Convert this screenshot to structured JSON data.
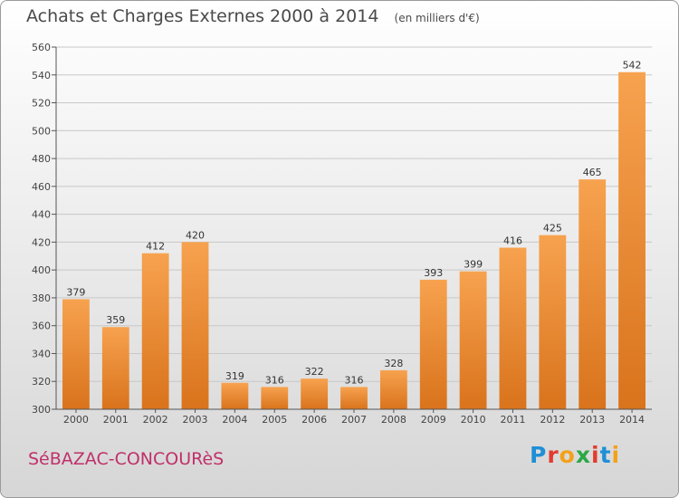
{
  "header": {
    "title": "Achats et Charges Externes 2000 à 2014",
    "unit": "(en milliers d'€)"
  },
  "footer": {
    "commune": "SéBAZAC-CONCOURèS",
    "logo": {
      "letters": [
        "P",
        "r",
        "o",
        "x",
        "i",
        "t",
        "i"
      ],
      "colors": [
        "#1f8fd6",
        "#e23b2f",
        "#f4a11a",
        "#2aa845",
        "#e23b2f",
        "#1f8fd6",
        "#f4a11a"
      ]
    }
  },
  "colors": {
    "bar_light": "#f7a24f",
    "bar_dark": "#d9731c",
    "grid": "#c8c8c8",
    "axis": "#555555"
  },
  "chart_data": {
    "type": "bar",
    "categories": [
      "2000",
      "2001",
      "2002",
      "2003",
      "2004",
      "2005",
      "2006",
      "2007",
      "2008",
      "2009",
      "2010",
      "2011",
      "2012",
      "2013",
      "2014"
    ],
    "values": [
      379,
      359,
      412,
      420,
      319,
      316,
      322,
      316,
      328,
      393,
      399,
      416,
      425,
      465,
      542
    ],
    "data_labels": [
      "379",
      "359",
      "412",
      "420",
      "319",
      "316",
      "322",
      "316",
      "328",
      "393",
      "399",
      "416",
      "425",
      "465",
      "542"
    ],
    "yticks": [
      "300",
      "320",
      "340",
      "360",
      "380",
      "400",
      "420",
      "440",
      "460",
      "480",
      "500",
      "520",
      "540",
      "560"
    ],
    "ylim": [
      300,
      560
    ],
    "grid": true,
    "legend": "none"
  }
}
